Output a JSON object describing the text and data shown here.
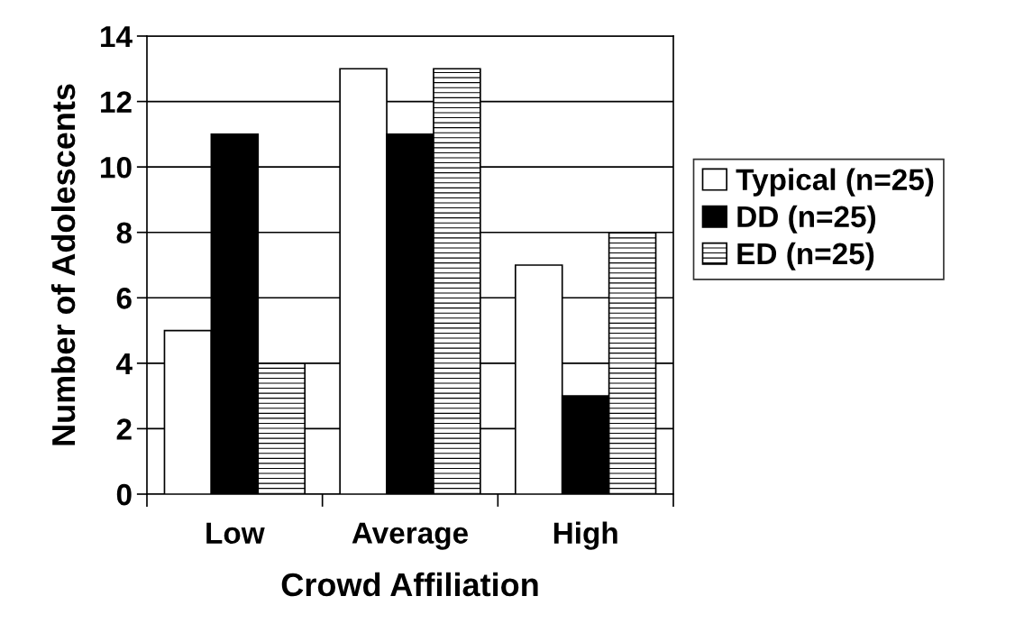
{
  "chart_data": {
    "type": "bar",
    "xlabel": "Crowd Affiliation",
    "ylabel": "Number of Adolescents",
    "categories": [
      "Low",
      "Average",
      "High"
    ],
    "series": [
      {
        "name": "Typical (n=25)",
        "color": "#ffffff",
        "values": [
          5,
          13,
          7
        ]
      },
      {
        "name": "DD (n=25)",
        "color": "#000000",
        "values": [
          11,
          11,
          3
        ]
      },
      {
        "name": "ED (n=25)",
        "color": "#000000",
        "values": [
          4,
          13,
          8
        ]
      }
    ],
    "ylim": [
      0,
      14
    ],
    "yticks": [
      0,
      2,
      4,
      6,
      8,
      10,
      12,
      14
    ],
    "grid": "y",
    "legend": "right"
  }
}
